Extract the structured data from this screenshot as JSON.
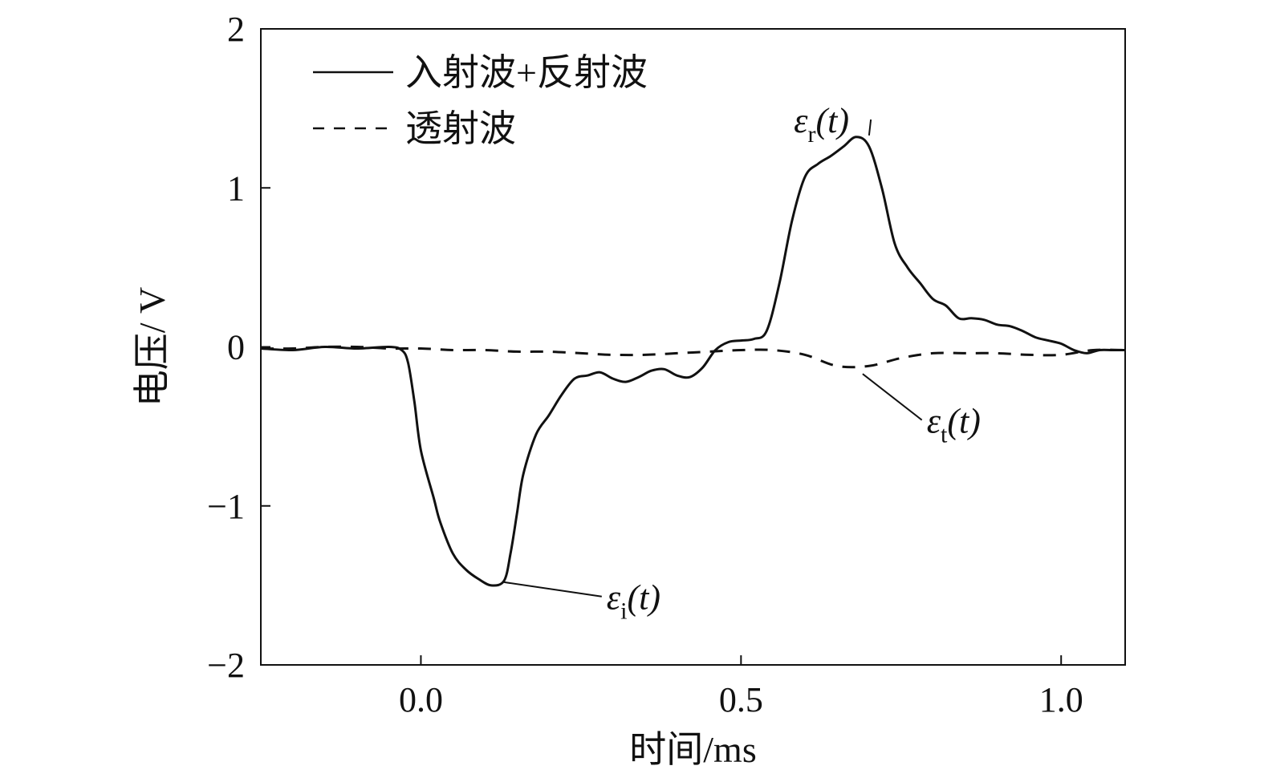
{
  "chart_data": {
    "type": "line",
    "xlabel": "时间/ms",
    "ylabel": "电压/ V",
    "xlim": [
      -0.25,
      1.1
    ],
    "ylim": [
      -2,
      2
    ],
    "xticks": [
      0.0,
      0.5,
      1.0
    ],
    "xtick_labels": [
      "0.0",
      "0.5",
      "1.0"
    ],
    "yticks": [
      2,
      1,
      0,
      -1,
      -2
    ],
    "ytick_labels": [
      "2",
      "1",
      "0",
      "−1",
      "−2"
    ],
    "grid": false,
    "legend_position": "top-left",
    "series": [
      {
        "name": "入射波+反射波",
        "style": "solid",
        "color": "#111111",
        "x": [
          -0.25,
          -0.2,
          -0.15,
          -0.1,
          -0.05,
          -0.03,
          -0.02,
          -0.01,
          0.0,
          0.02,
          0.03,
          0.05,
          0.07,
          0.09,
          0.11,
          0.13,
          0.14,
          0.15,
          0.16,
          0.18,
          0.2,
          0.22,
          0.24,
          0.26,
          0.28,
          0.3,
          0.32,
          0.34,
          0.36,
          0.38,
          0.4,
          0.42,
          0.44,
          0.46,
          0.48,
          0.5,
          0.52,
          0.54,
          0.56,
          0.58,
          0.6,
          0.62,
          0.64,
          0.66,
          0.68,
          0.7,
          0.72,
          0.74,
          0.76,
          0.78,
          0.8,
          0.82,
          0.84,
          0.86,
          0.88,
          0.9,
          0.92,
          0.94,
          0.96,
          0.98,
          1.0,
          1.02,
          1.04,
          1.06,
          1.08,
          1.1
        ],
        "y": [
          -0.01,
          -0.02,
          0.0,
          -0.01,
          0.0,
          -0.02,
          -0.1,
          -0.35,
          -0.65,
          -0.95,
          -1.1,
          -1.3,
          -1.4,
          -1.46,
          -1.5,
          -1.47,
          -1.3,
          -1.05,
          -0.8,
          -0.55,
          -0.43,
          -0.3,
          -0.2,
          -0.18,
          -0.16,
          -0.2,
          -0.22,
          -0.19,
          -0.15,
          -0.14,
          -0.18,
          -0.19,
          -0.13,
          -0.02,
          0.03,
          0.04,
          0.05,
          0.1,
          0.4,
          0.8,
          1.07,
          1.15,
          1.2,
          1.26,
          1.32,
          1.26,
          1.0,
          0.65,
          0.5,
          0.4,
          0.3,
          0.26,
          0.18,
          0.18,
          0.17,
          0.14,
          0.13,
          0.1,
          0.06,
          0.04,
          0.02,
          -0.02,
          -0.04,
          -0.02,
          -0.02,
          -0.02
        ]
      },
      {
        "name": "透射波",
        "style": "dashed",
        "color": "#111111",
        "x": [
          -0.25,
          -0.2,
          -0.15,
          -0.1,
          -0.05,
          0.0,
          0.05,
          0.1,
          0.15,
          0.2,
          0.25,
          0.3,
          0.35,
          0.4,
          0.45,
          0.5,
          0.55,
          0.6,
          0.65,
          0.7,
          0.75,
          0.8,
          0.85,
          0.9,
          0.95,
          1.0,
          1.05,
          1.1
        ],
        "y": [
          -0.01,
          -0.01,
          0.0,
          0.0,
          -0.01,
          -0.01,
          -0.02,
          -0.02,
          -0.03,
          -0.03,
          -0.04,
          -0.05,
          -0.05,
          -0.04,
          -0.03,
          -0.02,
          -0.02,
          -0.05,
          -0.12,
          -0.12,
          -0.07,
          -0.04,
          -0.04,
          -0.04,
          -0.05,
          -0.05,
          -0.02,
          -0.02
        ]
      }
    ],
    "annotations": [
      {
        "symbol": "ε",
        "subscript": "i",
        "suffix": "(t)",
        "point": [
          0.13,
          -1.48
        ],
        "label_at": [
          0.29,
          -1.58
        ]
      },
      {
        "symbol": "ε",
        "subscript": "r",
        "suffix": "(t)",
        "point": [
          0.7,
          1.33
        ],
        "label_at": [
          0.59,
          1.42
        ]
      },
      {
        "symbol": "ε",
        "subscript": "t",
        "suffix": "(t)",
        "point": [
          0.69,
          -0.17
        ],
        "label_at": [
          0.79,
          -0.47
        ]
      }
    ]
  }
}
